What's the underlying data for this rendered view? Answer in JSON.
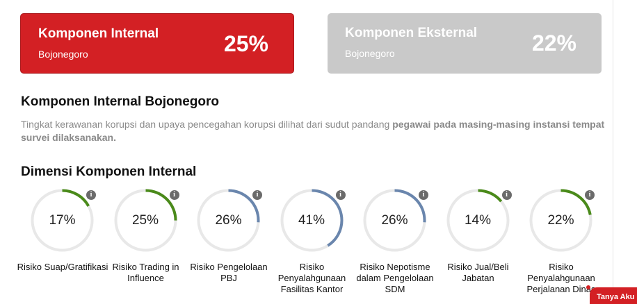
{
  "cards": [
    {
      "title": "Komponen Internal",
      "subtitle": "Bojonegoro",
      "percent": "25%"
    },
    {
      "title": "Komponen Eksternal",
      "subtitle": "Bojonegoro",
      "percent": "22%"
    }
  ],
  "section": {
    "title": "Komponen Internal Bojonegoro",
    "desc_plain": "Tingkat kerawanan korupsi dan upaya pencegahan korupsi dilihat dari sudut pandang ",
    "desc_bold": "pegawai pada masing-masing instansi tempat survei dilaksanakan."
  },
  "dimensions": {
    "title": "Dimensi Komponen Internal",
    "info_glyph": "i",
    "items": [
      {
        "value": 17,
        "display": "17%",
        "color": "#4a8a1a",
        "label": "Risiko Suap/Gratifikasi"
      },
      {
        "value": 25,
        "display": "25%",
        "color": "#4a8a1a",
        "label": "Risiko Trading in Influence"
      },
      {
        "value": 26,
        "display": "26%",
        "color": "#6a86ad",
        "label": "Risiko Pengelolaan PBJ"
      },
      {
        "value": 41,
        "display": "41%",
        "color": "#6a86ad",
        "label": "Risiko Penyalahgunaan Fasilitas Kantor"
      },
      {
        "value": 26,
        "display": "26%",
        "color": "#6a86ad",
        "label": "Risiko Nepotisme dalam Pengelolaan SDM"
      },
      {
        "value": 14,
        "display": "14%",
        "color": "#4a8a1a",
        "label": "Risiko Jual/Beli Jabatan"
      },
      {
        "value": 22,
        "display": "22%",
        "color": "#4a8a1a",
        "label": "Risiko Penyalahgunaan Perjalanan Dinas"
      }
    ]
  },
  "chat": {
    "label": "Tanya Aku"
  }
}
